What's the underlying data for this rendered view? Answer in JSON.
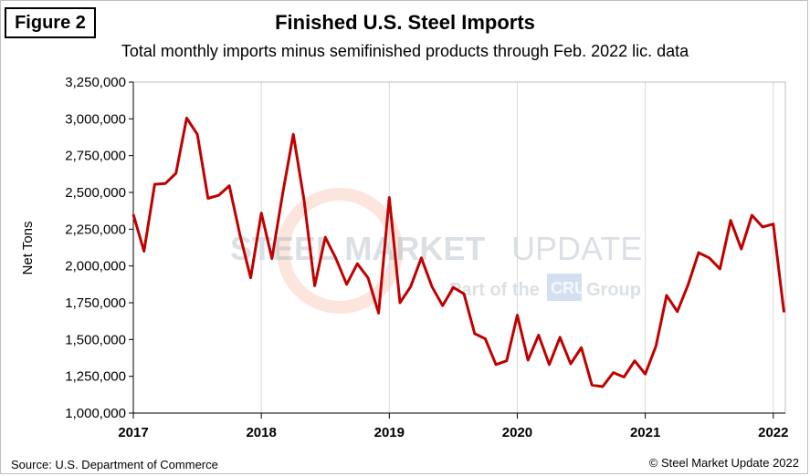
{
  "header": {
    "figure_label": "Figure 2",
    "title": "Finished U.S. Steel Imports",
    "subtitle": "Total monthly imports minus semifinished products through Feb. 2022 lic. data"
  },
  "footer": {
    "source": "Source: U.S. Department of Commerce",
    "copyright": "© Steel Market Update 2022"
  },
  "watermark": {
    "main_left": "STEEL MARKET",
    "main_right": "UPDATE",
    "sub_left": "Part of the",
    "sub_box": "CRU",
    "sub_right": "Group"
  },
  "colors": {
    "line": "#c00000",
    "axis": "#000000",
    "grid": "#d9d9d9"
  },
  "chart_data": {
    "type": "line",
    "title": "Finished U.S. Steel Imports",
    "xlabel": "",
    "ylabel": "Net Tons",
    "ylim": [
      1000000,
      3250000
    ],
    "y_ticks": [
      1000000,
      1250000,
      1500000,
      1750000,
      2000000,
      2250000,
      2500000,
      2750000,
      3000000,
      3250000
    ],
    "y_tick_labels": [
      "1,000,000",
      "1,250,000",
      "1,500,000",
      "1,750,000",
      "2,000,000",
      "2,250,000",
      "2,500,000",
      "2,750,000",
      "3,000,000",
      "3,250,000"
    ],
    "x_start_year": 2017,
    "x_tick_labels": [
      "2017",
      "2018",
      "2019",
      "2020",
      "2021",
      "2022"
    ],
    "grid": "vertical at each year",
    "series": [
      {
        "name": "Finished imports",
        "start": "2017-01",
        "values": [
          2350000,
          2100000,
          2555000,
          2560000,
          2630000,
          3005000,
          2895000,
          2460000,
          2480000,
          2545000,
          2210000,
          1920000,
          2360000,
          2050000,
          2490000,
          2895000,
          2450000,
          1865000,
          2195000,
          2050000,
          1875000,
          2015000,
          1920000,
          1680000,
          2465000,
          1750000,
          1860000,
          2055000,
          1860000,
          1730000,
          1855000,
          1810000,
          1540000,
          1505000,
          1330000,
          1355000,
          1665000,
          1360000,
          1530000,
          1330000,
          1515000,
          1335000,
          1445000,
          1190000,
          1180000,
          1275000,
          1245000,
          1355000,
          1265000,
          1455000,
          1800000,
          1690000,
          1870000,
          2090000,
          2055000,
          1980000,
          2310000,
          2115000,
          2345000,
          2265000,
          2285000,
          1685000
        ]
      }
    ]
  }
}
